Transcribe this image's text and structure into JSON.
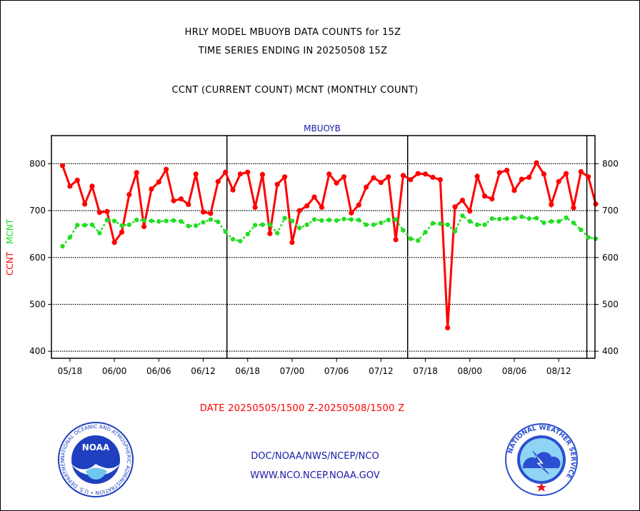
{
  "header": {
    "title1": "HRLY MODEL MBUOYB DATA COUNTS for 15Z",
    "title2": "TIME SERIES ENDING IN 20250508 15Z",
    "title3": "CCNT (CURRENT COUNT) MCNT (MONTHLY COUNT)"
  },
  "footer": {
    "date_range": "DATE 20250505/1500 Z-20250508/1500 Z",
    "org_path": "DOC/NOAA/NWS/NCEP/NCO",
    "website": "WWW.NCO.NCEP.NOAA.GOV"
  },
  "logos": {
    "noaa_text": "NOAA",
    "noaa_ring": "NATIONAL OCEANIC AND ATMOSPHERIC ADMINISTRATION • U.S. DEPARTMENT OF COMMERCE •",
    "nws_ring": "NATIONAL WEATHER SERVICE"
  },
  "colors": {
    "ccnt": "#ff0000",
    "mcnt": "#22dd22",
    "title_blue": "#1a1aa6",
    "noaa_blue": "#1f3fbf",
    "nws_blue": "#2b4fd0"
  },
  "chart_data": {
    "type": "line",
    "title": "MBUOYB",
    "ylabel_ccnt": "CCNT",
    "ylabel_mcnt": "MCNT",
    "ylim": [
      385,
      860
    ],
    "yticks": [
      400,
      500,
      600,
      700,
      800
    ],
    "x_tick_labels": [
      "05/18",
      "06/00",
      "06/06",
      "06/12",
      "06/18",
      "07/00",
      "07/06",
      "07/12",
      "07/18",
      "08/00",
      "08/06",
      "08/12"
    ],
    "x_range_hours": [
      -1.5,
      71.9
    ],
    "day_boundaries_hours": [
      22.2,
      46.6,
      70.8
    ],
    "grid": true,
    "series": [
      {
        "name": "CCNT",
        "color": "#ff0000",
        "values": [
          796,
          752,
          765,
          714,
          752,
          696,
          698,
          632,
          654,
          734,
          781,
          666,
          746,
          761,
          788,
          721,
          725,
          713,
          778,
          697,
          694,
          762,
          782,
          744,
          778,
          782,
          707,
          777,
          651,
          756,
          772,
          632,
          700,
          710,
          729,
          707,
          778,
          759,
          772,
          695,
          712,
          750,
          770,
          760,
          772,
          638,
          775,
          766,
          779,
          778,
          771,
          766,
          450,
          708,
          722,
          699,
          773,
          731,
          725,
          781,
          786,
          743,
          767,
          771,
          802,
          778,
          713,
          762,
          779,
          706,
          783,
          772,
          714
        ]
      },
      {
        "name": "MCNT",
        "color": "#22dd22",
        "values": [
          624,
          643,
          669,
          669,
          670,
          652,
          680,
          678,
          668,
          670,
          680,
          679,
          678,
          677,
          678,
          679,
          677,
          667,
          668,
          675,
          681,
          676,
          655,
          639,
          635,
          650,
          669,
          670,
          670,
          652,
          684,
          678,
          663,
          670,
          681,
          679,
          680,
          679,
          682,
          681,
          680,
          670,
          670,
          674,
          680,
          681,
          658,
          640,
          636,
          654,
          673,
          672,
          670,
          656,
          689,
          677,
          670,
          670,
          683,
          682,
          683,
          684,
          687,
          683,
          684,
          674,
          677,
          677,
          685,
          674,
          659,
          643,
          640
        ]
      }
    ]
  }
}
